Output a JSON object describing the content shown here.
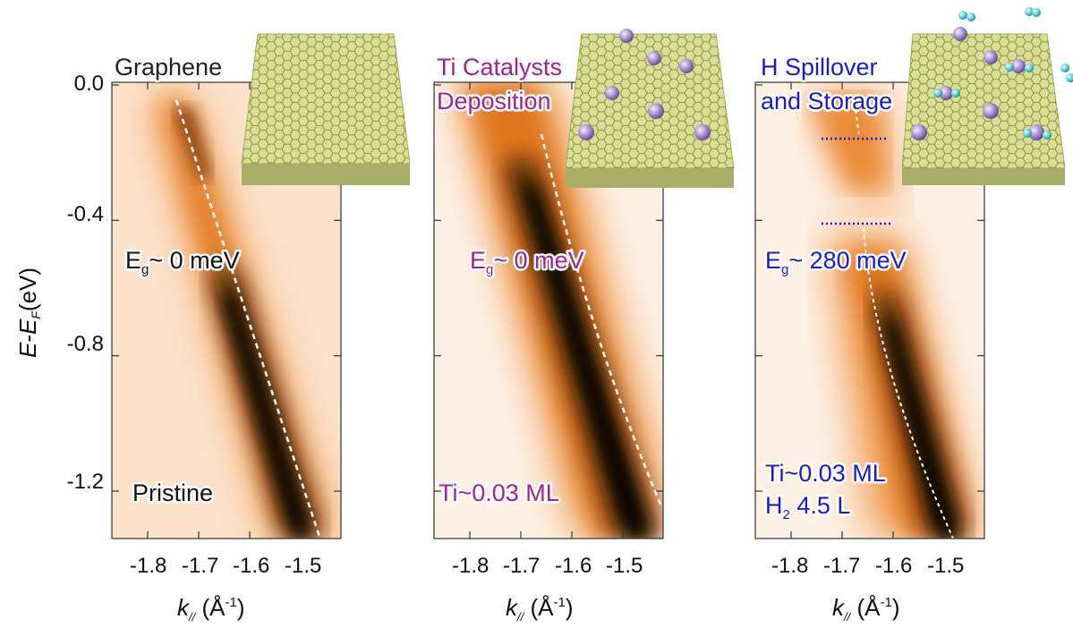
{
  "figure": {
    "y_axis": {
      "label_E": "E",
      "label_dash": "-",
      "label_EF": "E",
      "label_F": "F",
      "label_unit": "(eV)",
      "ticks": [
        "0.0",
        "-0.4",
        "-0.8",
        "-1.2"
      ],
      "tick_values": [
        0.0,
        -0.4,
        -0.8,
        -1.2
      ]
    },
    "x_axis": {
      "label_k": "k",
      "label_sub": "//",
      "label_unit_open": " (Å",
      "label_exp": "-1",
      "label_unit_close": ")",
      "ticks": [
        "-1.8",
        "-1.7",
        "-1.6",
        "-1.5"
      ],
      "tick_values": [
        -1.8,
        -1.7,
        -1.6,
        -1.5
      ]
    },
    "colors": {
      "panel1_text": "#222222",
      "panel2_text": "#a0228f",
      "panel3_text": "#1a1ad6",
      "map_light": "#fbe3cf",
      "map_mid": "#f08a2a",
      "map_dark": "#000000",
      "graphene_top": "#d8dd9a",
      "ti_atom": "#b59ad8",
      "h2_molecule": "#5fd3d6"
    },
    "panels": [
      {
        "title_lines": [
          "Graphene"
        ],
        "gap_prefix": "E",
        "gap_sub": "g",
        "gap_value": "~ 0 meV",
        "bottom_lines": [
          "Pristine"
        ],
        "bottom_sub": ""
      },
      {
        "title_lines": [
          "Ti Catalysts",
          "Deposition"
        ],
        "gap_prefix": "E",
        "gap_sub": "g",
        "gap_value": "~ 0 meV",
        "bottom_lines": [
          "Ti~0.03 ML"
        ],
        "bottom_sub": ""
      },
      {
        "title_lines": [
          "H Spillover",
          "and Storage"
        ],
        "gap_prefix": "E",
        "gap_sub": "g",
        "gap_value": "~ 280 meV",
        "bottom_lines": [
          "Ti~0.03 ML",
          "H"
        ],
        "bottom_sub": "2",
        "bottom_line2_rest": "  4.5 L"
      }
    ]
  }
}
